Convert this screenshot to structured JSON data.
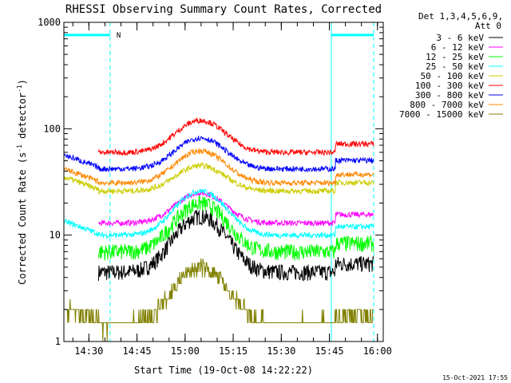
{
  "chart_data": {
    "type": "line",
    "title": "RHESSI Observing Summary Count Rates, Corrected",
    "xlabel": "Start Time (19-Oct-08 14:22:22)",
    "ylabel_main": "Corrected Count Rate (s",
    "ylabel_sup1": "-1",
    "ylabel_mid": " detector",
    "ylabel_sup2": "-1",
    "ylabel_end": ")",
    "yscale": "log",
    "ylim": [
      1,
      1000
    ],
    "xlim_minutes": [
      14.37,
      16.03
    ],
    "xticks": [
      {
        "label": "14:30",
        "hour": 14.5
      },
      {
        "label": "14:45",
        "hour": 14.75
      },
      {
        "label": "15:00",
        "hour": 15.0
      },
      {
        "label": "15:15",
        "hour": 15.25
      },
      {
        "label": "15:30",
        "hour": 15.5
      },
      {
        "label": "15:45",
        "hour": 15.75
      },
      {
        "label": "16:00",
        "hour": 16.0
      }
    ],
    "yticks": [
      {
        "label": "1",
        "value": 1
      },
      {
        "label": "10",
        "value": 10
      },
      {
        "label": "100",
        "value": 100
      },
      {
        "label": "1000",
        "value": 1000
      }
    ],
    "legend_header": [
      "Det 1,3,4,5,6,9,",
      "Att 0"
    ],
    "night_marker": "N",
    "series": [
      {
        "name": "3 - 6 keV",
        "color": "#000000",
        "peak": 15.0,
        "base": 4.5,
        "start": 14.55
      },
      {
        "name": "6 - 12 keV",
        "color": "#ff00ff",
        "peak": 25.0,
        "base": 13.0,
        "start": 14.55
      },
      {
        "name": "12 - 25 keV",
        "color": "#00ff00",
        "peak": 20.0,
        "base": 7.0,
        "start": 14.55
      },
      {
        "name": "25 - 50 keV",
        "color": "#00ffff",
        "peak": 26.0,
        "base": 10.0,
        "start": 14.37
      },
      {
        "name": "50 - 100 keV",
        "color": "#cccc00",
        "peak": 45.0,
        "base": 26.0,
        "start": 14.37
      },
      {
        "name": "100 - 300 keV",
        "color": "#ff0000",
        "peak": 120.0,
        "base": 60.0,
        "start": 14.55
      },
      {
        "name": "300 - 800 keV",
        "color": "#0000ff",
        "peak": 82.0,
        "base": 42.0,
        "start": 14.37
      },
      {
        "name": "800 - 7000 keV",
        "color": "#ff8800",
        "peak": 62.0,
        "base": 31.0,
        "start": 14.37
      },
      {
        "name": "7000 - 15000 keV",
        "color": "#808000",
        "peak": 5.0,
        "base": 1.5,
        "start": 14.37
      }
    ],
    "night_bars": [
      {
        "from_hour": 14.37,
        "to_hour": 14.61,
        "value": 760
      },
      {
        "from_hour": 15.76,
        "to_hour": 15.98,
        "value": 760
      }
    ],
    "dashed_lines_hour": [
      14.61,
      15.98
    ],
    "solid_lines_hour": [
      14.37,
      15.76
    ],
    "timestamp": "15-Oct-2021 17:55"
  }
}
